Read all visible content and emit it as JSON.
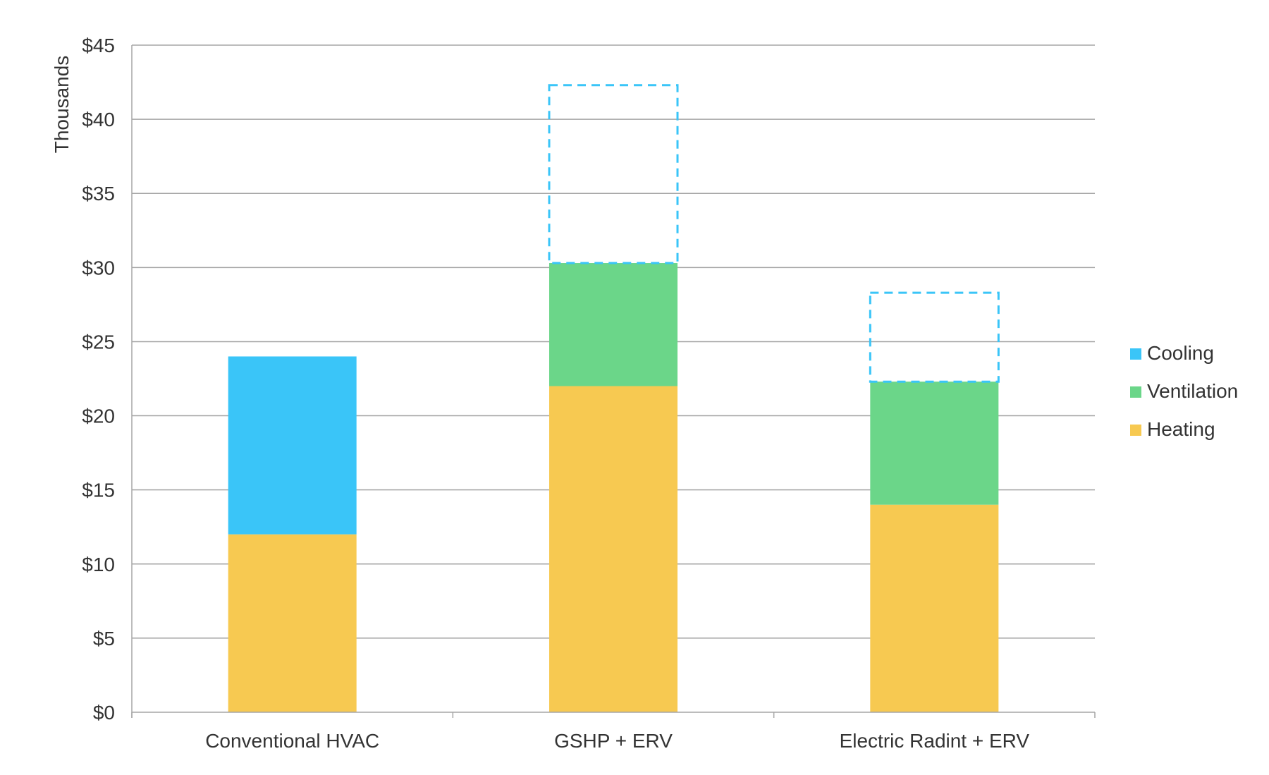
{
  "chart_data": {
    "type": "bar",
    "stacked": true,
    "ylabel": "Thousands",
    "xlabel": "",
    "ylim": [
      0,
      45
    ],
    "y_tick_values": [
      0,
      5,
      10,
      15,
      20,
      25,
      30,
      35,
      40,
      45
    ],
    "y_tick_labels": [
      "$0",
      "$5",
      "$10",
      "$15",
      "$20",
      "$25",
      "$30",
      "$35",
      "$40",
      "$45"
    ],
    "grid": true,
    "legend_position": "right",
    "categories": [
      "Conventional HVAC",
      "GSHP + ERV",
      "Electric Radint + ERV"
    ],
    "series": [
      {
        "name": "Heating",
        "color": "#F7C951",
        "values": [
          12,
          22,
          14
        ]
      },
      {
        "name": "Ventilation",
        "color": "#6BD689",
        "values": [
          0,
          8.3,
          8.3
        ]
      },
      {
        "name": "Cooling",
        "color": "#3AC5F8",
        "values": [
          12,
          0,
          0
        ]
      }
    ],
    "dashed_outlines": {
      "color": "#3AC5F8",
      "ranges": [
        null,
        [
          30.3,
          42.3
        ],
        [
          22.3,
          28.3
        ]
      ]
    },
    "legend_order": [
      "Cooling",
      "Ventilation",
      "Heating"
    ]
  }
}
